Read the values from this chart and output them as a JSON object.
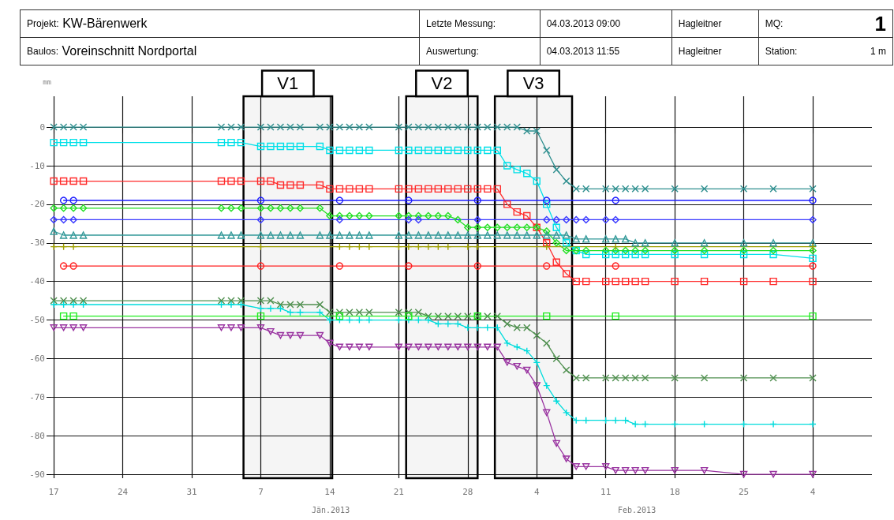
{
  "chart_data": {
    "type": "line",
    "ylabel": "mm",
    "annotations": [
      "Projekt:",
      "KW-Bärenwerk",
      "Letzte Messung:",
      "04.03.2013 09:00",
      "Hagleitner",
      "MQ:",
      "1",
      "Baulos:",
      "Voreinschnitt Nordportal",
      "Auswertung:",
      "04.03.2013 11:55",
      "Hagleitner",
      "Station:",
      "1 m",
      "Jän.2013",
      "Feb.2013"
    ],
    "x": [
      "2012-12-17",
      "2012-12-18",
      "2012-12-19",
      "2012-12-20",
      "2013-01-03",
      "2013-01-04",
      "2013-01-05",
      "2013-01-07",
      "2013-01-08",
      "2013-01-09",
      "2013-01-10",
      "2013-01-11",
      "2013-01-13",
      "2013-01-14",
      "2013-01-15",
      "2013-01-16",
      "2013-01-17",
      "2013-01-18",
      "2013-01-21",
      "2013-01-22",
      "2013-01-23",
      "2013-01-24",
      "2013-01-25",
      "2013-01-26",
      "2013-01-27",
      "2013-01-28",
      "2013-01-29",
      "2013-01-30",
      "2013-01-31",
      "2013-02-01",
      "2013-02-02",
      "2013-02-03",
      "2013-02-04",
      "2013-02-05",
      "2013-02-06",
      "2013-02-07",
      "2013-02-08",
      "2013-02-09",
      "2013-02-11",
      "2013-02-12",
      "2013-02-13",
      "2013-02-14",
      "2013-02-15",
      "2013-02-18",
      "2013-02-21",
      "2013-02-25",
      "2013-02-28",
      "2013-03-04"
    ],
    "series": [
      {
        "color": "#2f8f8f",
        "marker": "cross",
        "values": [
          0,
          0,
          0,
          0,
          0,
          0,
          0,
          0,
          0,
          0,
          0,
          0,
          0,
          0,
          0,
          0,
          0,
          0,
          0,
          0,
          0,
          0,
          0,
          0,
          0,
          0,
          0,
          0,
          0,
          0,
          0,
          -1,
          -1,
          -6,
          -11,
          -14,
          -16,
          -16,
          -16,
          -16,
          -16,
          -16,
          -16,
          -16,
          -16,
          -16,
          -16,
          -16
        ]
      },
      {
        "color": "#00e0e8",
        "marker": "square",
        "values": [
          -4,
          -4,
          -4,
          -4,
          -4,
          -4,
          -4,
          -5,
          -5,
          -5,
          -5,
          -5,
          -5,
          -6,
          -6,
          -6,
          -6,
          -6,
          -6,
          -6,
          -6,
          -6,
          -6,
          -6,
          -6,
          -6,
          -6,
          -6,
          -6,
          -10,
          -11,
          -12,
          -14,
          -20,
          -26,
          -30,
          -32,
          -33,
          -33,
          -33,
          -33,
          -33,
          -33,
          -33,
          -33,
          -33,
          -33,
          -34
        ]
      },
      {
        "color": "#ff2a2a",
        "marker": "square",
        "values": [
          -14,
          -14,
          -14,
          -14,
          -14,
          -14,
          -14,
          -14,
          -14,
          -15,
          -15,
          -15,
          -15,
          -16,
          -16,
          -16,
          -16,
          -16,
          -16,
          -16,
          -16,
          -16,
          -16,
          -16,
          -16,
          -16,
          -16,
          -16,
          -16,
          -20,
          -22,
          -23,
          -26,
          -30,
          -35,
          -38,
          -40,
          -40,
          -40,
          -40,
          -40,
          -40,
          -40,
          -40,
          -40,
          -40,
          -40,
          -40
        ]
      },
      {
        "color": "#1e1eff",
        "marker": "circle",
        "values": [
          null,
          -19,
          -19,
          null,
          null,
          null,
          null,
          -19,
          null,
          null,
          null,
          null,
          null,
          null,
          -19,
          null,
          null,
          null,
          null,
          -19,
          null,
          null,
          null,
          null,
          null,
          null,
          -19,
          null,
          null,
          null,
          null,
          null,
          null,
          -19,
          null,
          null,
          null,
          null,
          null,
          -19,
          null,
          null,
          null,
          null,
          null,
          null,
          null,
          -19
        ]
      },
      {
        "color": "#ff2020",
        "marker": "circle",
        "values": [
          null,
          -36,
          -36,
          null,
          null,
          null,
          null,
          -36,
          null,
          null,
          null,
          null,
          null,
          null,
          -36,
          null,
          null,
          null,
          null,
          -36,
          null,
          null,
          null,
          null,
          null,
          null,
          -36,
          null,
          null,
          null,
          null,
          null,
          null,
          -36,
          null,
          null,
          null,
          null,
          null,
          -36,
          null,
          null,
          null,
          null,
          null,
          null,
          null,
          -36
        ]
      },
      {
        "color": "#22e022",
        "marker": "diamond",
        "values": [
          -21,
          -21,
          -21,
          -21,
          -21,
          -21,
          -21,
          -21,
          -21,
          -21,
          -21,
          -21,
          -21,
          -23,
          -23,
          -23,
          -23,
          -23,
          -23,
          -23,
          -23,
          -23,
          -23,
          -23,
          -24,
          -26,
          -26,
          -26,
          -26,
          -26,
          -26,
          -26,
          -26,
          -27,
          -30,
          -32,
          -32,
          -32,
          -32,
          -32,
          -32,
          -32,
          -32,
          -32,
          -32,
          -32,
          -32,
          -32
        ]
      },
      {
        "color": "#3a3aff",
        "marker": "diamond",
        "values": [
          -24,
          -24,
          -24,
          null,
          null,
          null,
          null,
          -24,
          null,
          null,
          null,
          null,
          null,
          null,
          -24,
          null,
          null,
          null,
          null,
          -24,
          -24,
          null,
          null,
          null,
          null,
          null,
          -24,
          null,
          null,
          null,
          null,
          null,
          null,
          -24,
          -24,
          -24,
          -24,
          -24,
          -24,
          -24,
          null,
          null,
          null,
          null,
          null,
          null,
          null,
          -24
        ]
      },
      {
        "color": "#339999",
        "marker": "triangle",
        "values": [
          -27,
          -28,
          -28,
          -28,
          -28,
          -28,
          -28,
          -28,
          -28,
          -28,
          -28,
          -28,
          -28,
          -28,
          -28,
          -28,
          -28,
          -28,
          -28,
          -28,
          -28,
          -28,
          -28,
          -28,
          -28,
          -28,
          -28,
          -28,
          -28,
          -28,
          -28,
          -28,
          -28,
          -28,
          -28,
          -28,
          -29,
          -29,
          -29,
          -29,
          -29,
          -30,
          -30,
          -30,
          -30,
          -30,
          -30,
          -30
        ]
      },
      {
        "color": "#a0a000",
        "marker": "plus",
        "values": [
          -31,
          -31,
          -31,
          null,
          null,
          null,
          null,
          -31,
          null,
          null,
          null,
          null,
          null,
          null,
          -31,
          -31,
          -31,
          -31,
          -31,
          -31,
          -31,
          -31,
          -31,
          -31,
          null,
          -31,
          -31,
          null,
          null,
          null,
          null,
          null,
          null,
          -31,
          null,
          null,
          null,
          null,
          null,
          -31,
          null,
          null,
          null,
          null,
          null,
          null,
          null,
          -31
        ]
      },
      {
        "color": "#4f8f4f",
        "marker": "cross",
        "values": [
          -45,
          -45,
          -45,
          -45,
          -45,
          -45,
          -45,
          -45,
          -45,
          -46,
          -46,
          -46,
          -46,
          -48,
          -48,
          -48,
          -48,
          -48,
          -48,
          -48,
          -48,
          -49,
          -49,
          -49,
          -49,
          -49,
          -49,
          -49,
          -49,
          -51,
          -52,
          -52,
          -54,
          -56,
          -60,
          -63,
          -65,
          -65,
          -65,
          -65,
          -65,
          -65,
          -65,
          -65,
          -65,
          -65,
          -65,
          -65
        ]
      },
      {
        "color": "#00dcdc",
        "marker": "plus",
        "values": [
          -46,
          -46,
          -46,
          -46,
          -46,
          -46,
          -46,
          -47,
          -47,
          -47,
          -48,
          -48,
          -48,
          -50,
          -50,
          -50,
          -50,
          -50,
          -50,
          -50,
          -50,
          -50,
          -51,
          -51,
          -51,
          -52,
          -52,
          -52,
          -52,
          -56,
          -57,
          -58,
          -61,
          -67,
          -71,
          -74,
          -76,
          -76,
          -76,
          -76,
          -76,
          -77,
          -77,
          -77,
          -77,
          -77,
          -77,
          -77
        ]
      },
      {
        "color": "#22ee22",
        "marker": "square",
        "values": [
          null,
          -49,
          -49,
          null,
          null,
          null,
          null,
          -49,
          null,
          null,
          null,
          null,
          null,
          null,
          -49,
          null,
          null,
          null,
          null,
          -49,
          null,
          null,
          null,
          null,
          null,
          null,
          -49,
          null,
          null,
          null,
          null,
          null,
          null,
          -49,
          null,
          null,
          null,
          null,
          null,
          -49,
          null,
          null,
          null,
          null,
          null,
          null,
          null,
          -49
        ]
      },
      {
        "color": "#9933a0",
        "marker": "triangle-down",
        "values": [
          -52,
          -52,
          -52,
          -52,
          -52,
          -52,
          -52,
          -52,
          -53,
          -54,
          -54,
          -54,
          -54,
          -56,
          -57,
          -57,
          -57,
          -57,
          -57,
          -57,
          -57,
          -57,
          -57,
          -57,
          -57,
          -57,
          -57,
          -57,
          -57,
          -61,
          -62,
          -63,
          -67,
          -74,
          -82,
          -86,
          -88,
          -88,
          -88,
          -89,
          -89,
          -89,
          -89,
          -89,
          -89,
          -90,
          -90,
          -90
        ]
      }
    ],
    "bands": [
      {
        "axis": "x",
        "from": "2013-01-05T06:00",
        "to": "2013-01-14T06:00",
        "label": "V1",
        "color": "#000000"
      },
      {
        "axis": "x",
        "from": "2013-01-21T18:00",
        "to": "2013-01-29T00:00",
        "label": "V2",
        "color": "#000000"
      },
      {
        "axis": "x",
        "from": "2013-01-30T18:00",
        "to": "2013-02-07T14:00",
        "label": "V3",
        "color": "#000000"
      }
    ],
    "xlim": [
      "2012-12-16T18:00",
      "2013-03-10"
    ],
    "xticks": [
      {
        "value": "2012-12-17",
        "label": "17"
      },
      {
        "value": "2012-12-24",
        "label": "24"
      },
      {
        "value": "2012-12-31",
        "label": "31"
      },
      {
        "value": "2013-01-07",
        "label": "7"
      },
      {
        "value": "2013-01-14",
        "label": "14"
      },
      {
        "value": "2013-01-21",
        "label": "21"
      },
      {
        "value": "2013-01-28",
        "label": "28"
      },
      {
        "value": "2013-02-04",
        "label": "4"
      },
      {
        "value": "2013-02-11",
        "label": "11"
      },
      {
        "value": "2013-02-18",
        "label": "18"
      },
      {
        "value": "2013-02-25",
        "label": "25"
      },
      {
        "value": "2013-03-04",
        "label": "4"
      }
    ],
    "ylim": [
      -91,
      8
    ],
    "yticks": [
      0,
      -10,
      -20,
      -30,
      -40,
      -50,
      -60,
      -70,
      -80,
      -90
    ],
    "grid": true,
    "line_style": "solid"
  }
}
